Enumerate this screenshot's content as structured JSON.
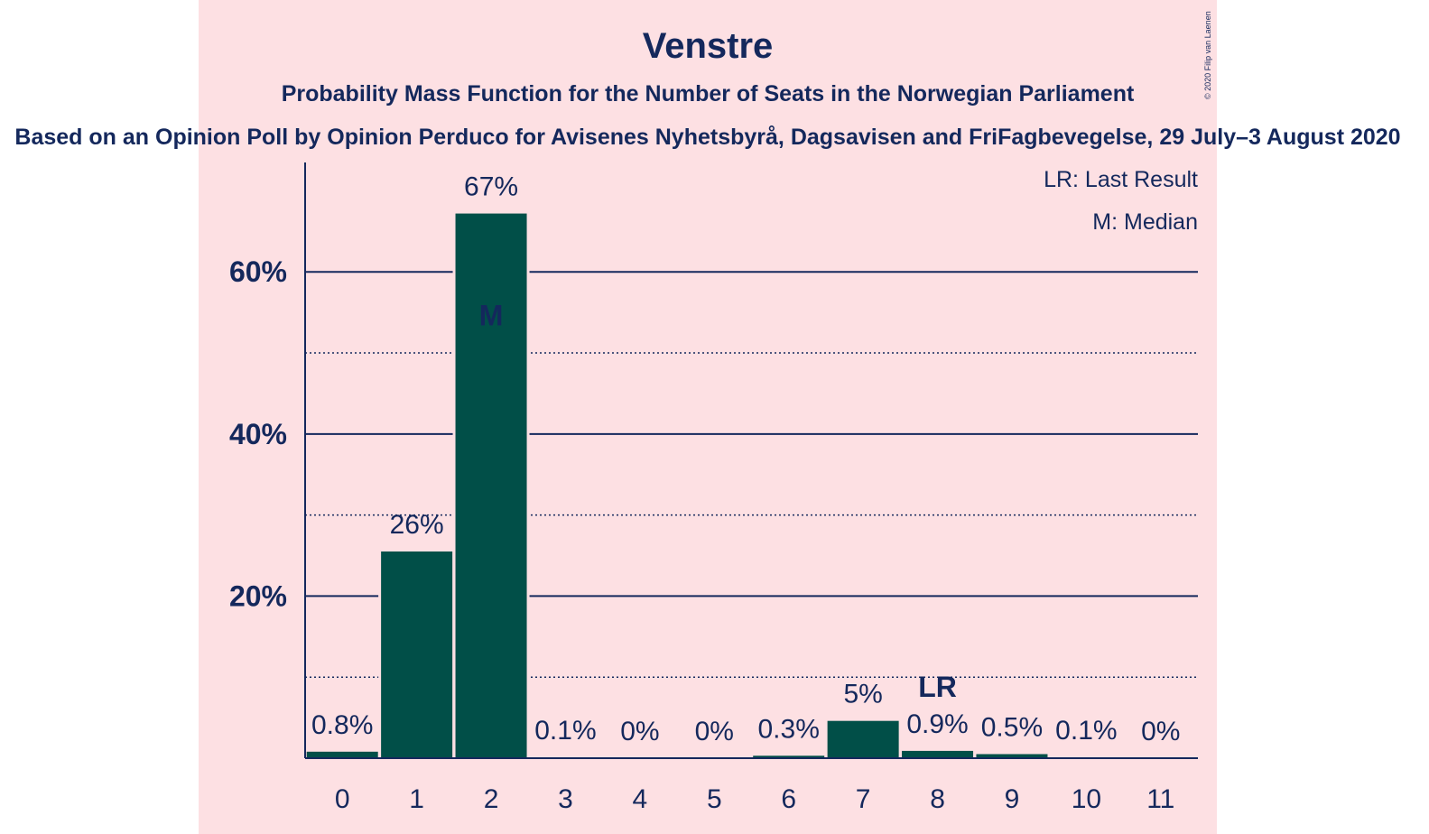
{
  "colors": {
    "panel_bg": "#fde0e3",
    "text": "#14285c",
    "bar": "#014f48",
    "bar_label_inside": "#fde0e3"
  },
  "chart_data": {
    "type": "bar",
    "title": "Venstre",
    "subtitle": "Probability Mass Function for the Number of Seats in the Norwegian Parliament",
    "caption": "Based on an Opinion Poll by Opinion Perduco for Avisenes Nyhetsbyrå, Dagsavisen and FriFagbevegelse, 29 July–3 August 2020",
    "copyright": "© 2020 Filip van Laenen",
    "legend": [
      "LR: Last Result",
      "M: Median"
    ],
    "legend_position": "top-right",
    "categories": [
      "0",
      "1",
      "2",
      "3",
      "4",
      "5",
      "6",
      "7",
      "8",
      "9",
      "10",
      "11"
    ],
    "values": [
      0.8,
      25.5,
      67.2,
      0.1,
      0,
      0,
      0.3,
      4.6,
      0.9,
      0.5,
      0.1,
      0
    ],
    "value_labels": [
      "0.8%",
      "26%",
      "67%",
      "0.1%",
      "0%",
      "0%",
      "0.3%",
      "5%",
      "0.9%",
      "0.5%",
      "0.1%",
      "0%"
    ],
    "y_ticks": [
      20,
      40,
      60
    ],
    "y_tick_labels": [
      "20%",
      "40%",
      "60%"
    ],
    "y_minor_gridlines": [
      10,
      30,
      50
    ],
    "ylim": [
      0,
      73.5
    ],
    "median_category": "2",
    "median_label": "M",
    "last_result_category": "8",
    "last_result_label": "LR",
    "xlabel": "",
    "ylabel": ""
  }
}
